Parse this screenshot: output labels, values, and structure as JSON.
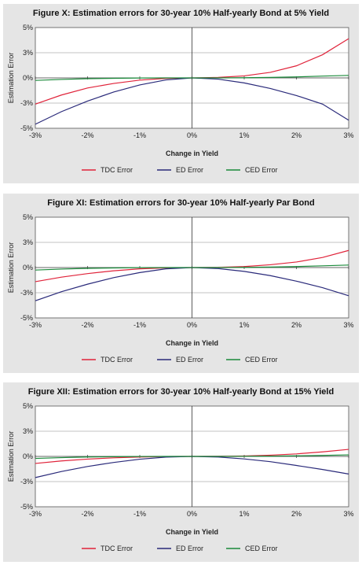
{
  "chart_data": [
    {
      "type": "line",
      "title": "Figure X: Estimation errors for 30-year 10% Half-yearly Bond at 5% Yield",
      "xlabel": "Change in Yield",
      "ylabel": "Estimation Error",
      "xlim": [
        -3,
        3
      ],
      "ylim": [
        -5,
        5
      ],
      "x": [
        -3,
        -2.5,
        -2,
        -1.5,
        -1,
        -0.5,
        0,
        0.5,
        1,
        1.5,
        2,
        2.5,
        3
      ],
      "xtick_labels": [
        "-3%",
        "-2%",
        "-1%",
        "0%",
        "1%",
        "2%",
        "3%"
      ],
      "ytick_labels": [
        "5%",
        "3%",
        "0%",
        "-3%",
        "-5%"
      ],
      "ytick_values": [
        5,
        2.5,
        0,
        -2.5,
        -5
      ],
      "legend_position": "bottom",
      "series": [
        {
          "name": "TDC Error",
          "color": "#e0233a",
          "values": [
            -2.6,
            -1.7,
            -1.0,
            -0.55,
            -0.22,
            -0.05,
            0,
            0.05,
            0.2,
            0.55,
            1.2,
            2.3,
            3.9
          ]
        },
        {
          "name": "ED Error",
          "color": "#2a2a7a",
          "values": [
            -4.6,
            -3.35,
            -2.3,
            -1.4,
            -0.7,
            -0.2,
            0,
            -0.12,
            -0.5,
            -1.05,
            -1.75,
            -2.6,
            -4.2
          ]
        },
        {
          "name": "CED Error",
          "color": "#1a8a3a",
          "values": [
            -0.25,
            -0.15,
            -0.08,
            -0.04,
            -0.01,
            0,
            0,
            0,
            0.02,
            0.05,
            0.1,
            0.18,
            0.25
          ]
        }
      ]
    },
    {
      "type": "line",
      "title": "Figure XI: Estimation errors for 30-year 10% Half-yearly Par Bond",
      "xlabel": "Change in Yield",
      "ylabel": "Estimation Error",
      "xlim": [
        -3,
        3
      ],
      "ylim": [
        -5,
        5
      ],
      "x": [
        -3,
        -2.5,
        -2,
        -1.5,
        -1,
        -0.5,
        0,
        0.5,
        1,
        1.5,
        2,
        2.5,
        3
      ],
      "xtick_labels": [
        "-3%",
        "-2%",
        "-1%",
        "0%",
        "1%",
        "2%",
        "3%"
      ],
      "ytick_labels": [
        "5%",
        "3%",
        "0%",
        "-3%",
        "-5%"
      ],
      "ytick_values": [
        5,
        2.5,
        0,
        -2.5,
        -5
      ],
      "legend_position": "bottom",
      "series": [
        {
          "name": "TDC Error",
          "color": "#e0233a",
          "values": [
            -1.4,
            -0.95,
            -0.6,
            -0.32,
            -0.13,
            -0.03,
            0,
            0.02,
            0.1,
            0.28,
            0.55,
            1.0,
            1.7
          ]
        },
        {
          "name": "ED Error",
          "color": "#2a2a7a",
          "values": [
            -3.3,
            -2.4,
            -1.65,
            -1.0,
            -0.5,
            -0.13,
            0,
            -0.1,
            -0.38,
            -0.8,
            -1.35,
            -2.0,
            -2.8
          ]
        },
        {
          "name": "CED Error",
          "color": "#1a8a3a",
          "values": [
            -0.25,
            -0.15,
            -0.08,
            -0.04,
            -0.01,
            0,
            0,
            0,
            0.02,
            0.05,
            0.1,
            0.17,
            0.25
          ]
        }
      ]
    },
    {
      "type": "line",
      "title": "Figure XII: Estimation errors for 30-year 10% Half-yearly Bond at 15% Yield",
      "xlabel": "Change in Yield",
      "ylabel": "Estimation Error",
      "xlim": [
        -3,
        3
      ],
      "ylim": [
        -5,
        5
      ],
      "x": [
        -3,
        -2.5,
        -2,
        -1.5,
        -1,
        -0.5,
        0,
        0.5,
        1,
        1.5,
        2,
        2.5,
        3
      ],
      "xtick_labels": [
        "-3%",
        "-2%",
        "-1%",
        "0%",
        "1%",
        "2%",
        "3%"
      ],
      "ytick_labels": [
        "5%",
        "3%",
        "0%",
        "-3%",
        "-5%"
      ],
      "ytick_values": [
        5,
        2.5,
        0,
        -2.5,
        -5
      ],
      "legend_position": "bottom",
      "series": [
        {
          "name": "TDC Error",
          "color": "#e0233a",
          "values": [
            -0.7,
            -0.45,
            -0.27,
            -0.14,
            -0.06,
            -0.01,
            0,
            0.01,
            0.04,
            0.12,
            0.25,
            0.45,
            0.7
          ]
        },
        {
          "name": "ED Error",
          "color": "#2a2a7a",
          "values": [
            -2.1,
            -1.5,
            -1.0,
            -0.6,
            -0.28,
            -0.07,
            0,
            -0.06,
            -0.25,
            -0.52,
            -0.9,
            -1.3,
            -1.75
          ]
        },
        {
          "name": "CED Error",
          "color": "#1a8a3a",
          "values": [
            -0.2,
            -0.12,
            -0.06,
            -0.03,
            -0.01,
            0,
            0,
            0,
            0.01,
            0.03,
            0.06,
            0.1,
            0.15
          ]
        }
      ]
    }
  ]
}
